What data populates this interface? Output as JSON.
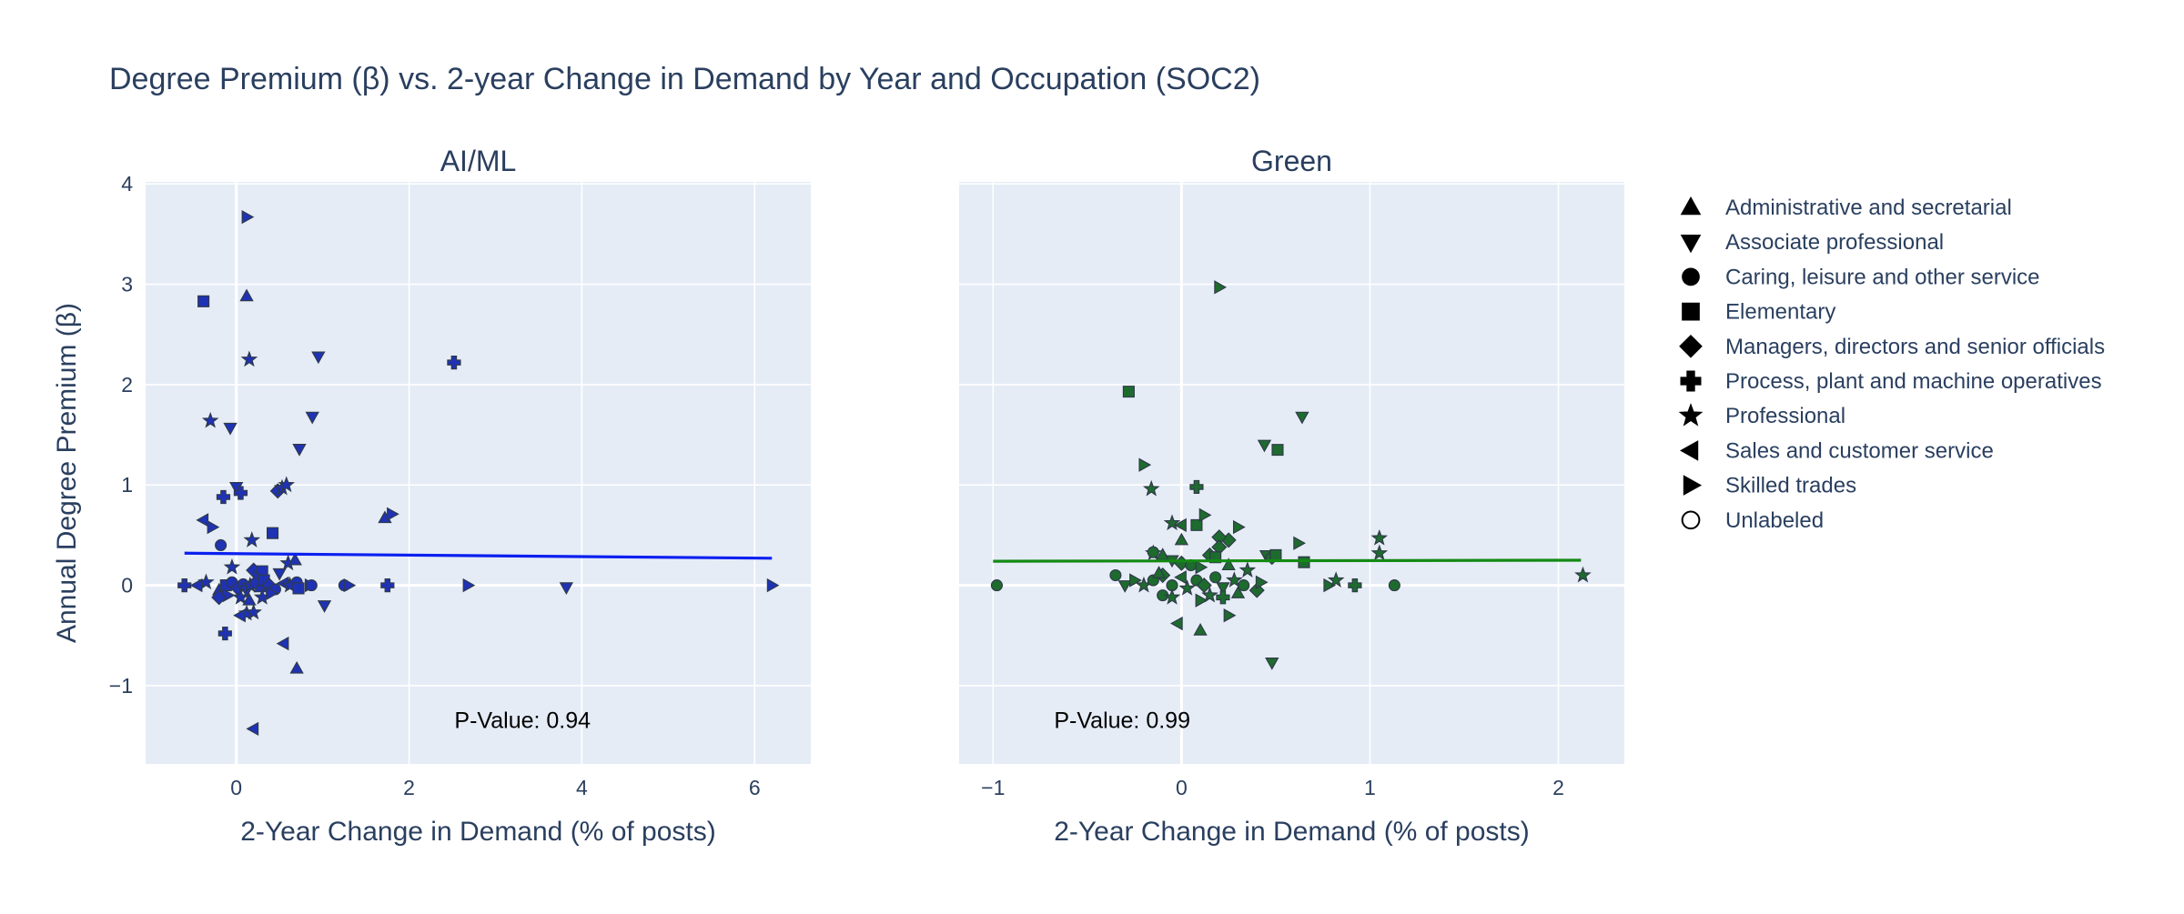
{
  "title": "Degree Premium (β) vs. 2-year Change in Demand by Year and Occupation (SOC2)",
  "colors": {
    "background": "#ffffff",
    "plot_bg": "#e5ecf6",
    "grid": "#ffffff",
    "text": "#2a3f5f",
    "ai_marker": "#1f32b4",
    "ai_line": "#0b1ff0",
    "green_marker": "#1e6b2e",
    "green_line": "#138a13",
    "marker_edge": "#2f3a4a"
  },
  "legend": {
    "placement": "right",
    "items": [
      {
        "label": "Administrative and secretarial",
        "symbol": "triangle-up"
      },
      {
        "label": "Associate professional",
        "symbol": "triangle-down"
      },
      {
        "label": "Caring, leisure and other service",
        "symbol": "circle"
      },
      {
        "label": "Elementary",
        "symbol": "square"
      },
      {
        "label": "Managers, directors and senior officials",
        "symbol": "diamond"
      },
      {
        "label": "Process, plant and machine operatives",
        "symbol": "cross"
      },
      {
        "label": "Professional",
        "symbol": "star"
      },
      {
        "label": "Sales and customer service",
        "symbol": "triangle-left"
      },
      {
        "label": "Skilled trades",
        "symbol": "triangle-right"
      },
      {
        "label": "Unlabeled",
        "symbol": "circle-open"
      }
    ]
  },
  "chart_data": [
    {
      "type": "scatter",
      "subtitle": "AI/ML",
      "xlabel": "2-Year Change in Demand (% of posts)",
      "ylabel": "Annual Degree Premium (β)",
      "xlim": [
        -1.05,
        6.65
      ],
      "ylim": [
        -1.78,
        4.02
      ],
      "xticks": [
        0,
        2,
        4,
        6
      ],
      "yticks": [
        -1,
        0,
        1,
        2,
        3,
        4
      ],
      "ytick_labels": [
        "−1",
        "0",
        "1",
        "2",
        "3",
        "4"
      ],
      "grid": true,
      "annotation": "P-Value: 0.94",
      "annotation_pos": [
        4.0,
        -1.34
      ],
      "fit_line": {
        "x": [
          -0.6,
          6.2
        ],
        "y": [
          0.32,
          0.27
        ]
      },
      "points": [
        {
          "x": 0.12,
          "y": 3.67,
          "symbol": "triangle-right"
        },
        {
          "x": 0.12,
          "y": 2.88,
          "symbol": "triangle-up"
        },
        {
          "x": -0.38,
          "y": 2.83,
          "symbol": "square"
        },
        {
          "x": 0.15,
          "y": 2.25,
          "symbol": "star"
        },
        {
          "x": 0.95,
          "y": 2.28,
          "symbol": "triangle-down"
        },
        {
          "x": 2.52,
          "y": 2.22,
          "symbol": "cross"
        },
        {
          "x": 0.88,
          "y": 1.68,
          "symbol": "triangle-down"
        },
        {
          "x": -0.3,
          "y": 1.64,
          "symbol": "star"
        },
        {
          "x": -0.07,
          "y": 1.57,
          "symbol": "triangle-down"
        },
        {
          "x": 0.73,
          "y": 1.36,
          "symbol": "triangle-down"
        },
        {
          "x": 0.0,
          "y": 0.98,
          "symbol": "triangle-down"
        },
        {
          "x": 0.05,
          "y": 0.92,
          "symbol": "cross"
        },
        {
          "x": -0.15,
          "y": 0.88,
          "symbol": "cross"
        },
        {
          "x": 0.48,
          "y": 0.94,
          "symbol": "diamond"
        },
        {
          "x": 0.53,
          "y": 0.97,
          "symbol": "star"
        },
        {
          "x": 0.58,
          "y": 1.0,
          "symbol": "star"
        },
        {
          "x": 1.72,
          "y": 0.67,
          "symbol": "triangle-up"
        },
        {
          "x": 1.8,
          "y": 0.71,
          "symbol": "triangle-right"
        },
        {
          "x": -0.38,
          "y": 0.65,
          "symbol": "triangle-left"
        },
        {
          "x": -0.28,
          "y": 0.58,
          "symbol": "triangle-right"
        },
        {
          "x": 0.42,
          "y": 0.52,
          "symbol": "square"
        },
        {
          "x": 0.18,
          "y": 0.45,
          "symbol": "star"
        },
        {
          "x": -0.18,
          "y": 0.4,
          "symbol": "circle"
        },
        {
          "x": 0.6,
          "y": 0.22,
          "symbol": "star"
        },
        {
          "x": 0.68,
          "y": 0.25,
          "symbol": "triangle-up"
        },
        {
          "x": -0.05,
          "y": 0.18,
          "symbol": "star"
        },
        {
          "x": 0.2,
          "y": 0.15,
          "symbol": "diamond"
        },
        {
          "x": 0.3,
          "y": 0.14,
          "symbol": "square"
        },
        {
          "x": 0.5,
          "y": 0.12,
          "symbol": "triangle-down"
        },
        {
          "x": 0.25,
          "y": 0.08,
          "symbol": "triangle-right"
        },
        {
          "x": -0.6,
          "y": 0.0,
          "symbol": "cross"
        },
        {
          "x": -0.45,
          "y": 0.0,
          "symbol": "triangle-left"
        },
        {
          "x": -0.35,
          "y": 0.03,
          "symbol": "star"
        },
        {
          "x": -0.2,
          "y": -0.05,
          "symbol": "triangle-up"
        },
        {
          "x": -0.12,
          "y": 0.0,
          "symbol": "square"
        },
        {
          "x": -0.05,
          "y": 0.03,
          "symbol": "circle"
        },
        {
          "x": 0.02,
          "y": -0.03,
          "symbol": "diamond"
        },
        {
          "x": 0.08,
          "y": 0.01,
          "symbol": "circle"
        },
        {
          "x": 0.12,
          "y": -0.05,
          "symbol": "triangle-down"
        },
        {
          "x": 0.16,
          "y": 0.0,
          "symbol": "star"
        },
        {
          "x": 0.22,
          "y": 0.02,
          "symbol": "circle"
        },
        {
          "x": 0.28,
          "y": -0.02,
          "symbol": "triangle-up"
        },
        {
          "x": 0.32,
          "y": 0.05,
          "symbol": "square"
        },
        {
          "x": 0.38,
          "y": 0.0,
          "symbol": "diamond"
        },
        {
          "x": 0.45,
          "y": -0.04,
          "symbol": "circle"
        },
        {
          "x": 0.55,
          "y": 0.02,
          "symbol": "triangle-left"
        },
        {
          "x": 0.62,
          "y": 0.0,
          "symbol": "star"
        },
        {
          "x": 0.7,
          "y": 0.03,
          "symbol": "circle"
        },
        {
          "x": 0.72,
          "y": -0.03,
          "symbol": "square"
        },
        {
          "x": 0.85,
          "y": 0.0,
          "symbol": "triangle-right"
        },
        {
          "x": 0.87,
          "y": 0.0,
          "symbol": "circle"
        },
        {
          "x": -0.1,
          "y": -0.1,
          "symbol": "triangle-right"
        },
        {
          "x": 0.05,
          "y": -0.12,
          "symbol": "star"
        },
        {
          "x": 0.15,
          "y": -0.15,
          "symbol": "triangle-up"
        },
        {
          "x": 0.3,
          "y": -0.12,
          "symbol": "star"
        },
        {
          "x": 0.4,
          "y": -0.08,
          "symbol": "triangle-right"
        },
        {
          "x": -0.2,
          "y": -0.12,
          "symbol": "diamond"
        },
        {
          "x": 0.12,
          "y": -0.28,
          "symbol": "star"
        },
        {
          "x": 0.05,
          "y": -0.3,
          "symbol": "triangle-left"
        },
        {
          "x": 0.2,
          "y": -0.27,
          "symbol": "star"
        },
        {
          "x": -0.13,
          "y": -0.48,
          "symbol": "cross"
        },
        {
          "x": 0.55,
          "y": -0.58,
          "symbol": "triangle-left"
        },
        {
          "x": 0.7,
          "y": -0.83,
          "symbol": "triangle-up"
        },
        {
          "x": 1.02,
          "y": -0.2,
          "symbol": "triangle-down"
        },
        {
          "x": 1.25,
          "y": 0.0,
          "symbol": "circle"
        },
        {
          "x": 1.3,
          "y": 0.0,
          "symbol": "triangle-right"
        },
        {
          "x": 1.75,
          "y": 0.0,
          "symbol": "cross"
        },
        {
          "x": 2.68,
          "y": 0.0,
          "symbol": "triangle-right"
        },
        {
          "x": 3.82,
          "y": -0.02,
          "symbol": "triangle-down"
        },
        {
          "x": 6.2,
          "y": 0.0,
          "symbol": "triangle-right"
        },
        {
          "x": 0.2,
          "y": -1.43,
          "symbol": "triangle-left"
        }
      ]
    },
    {
      "type": "scatter",
      "subtitle": "Green",
      "xlabel": "2-Year Change in Demand (% of posts)",
      "ylabel": "",
      "xlim": [
        -1.18,
        2.35
      ],
      "ylim": [
        -1.78,
        4.02
      ],
      "xticks": [
        -1,
        0,
        1,
        2
      ],
      "xtick_labels": [
        "−1",
        "0",
        "1",
        "2"
      ],
      "yticks": [
        -1,
        0,
        1,
        2,
        3,
        4
      ],
      "grid": true,
      "annotation": "P-Value: 0.99",
      "annotation_pos": [
        0.0,
        -1.34
      ],
      "fit_line": {
        "x": [
          -1.0,
          2.12
        ],
        "y": [
          0.24,
          0.25
        ]
      },
      "points": [
        {
          "x": 0.2,
          "y": 2.97,
          "symbol": "triangle-right"
        },
        {
          "x": -0.28,
          "y": 1.93,
          "symbol": "square"
        },
        {
          "x": 0.64,
          "y": 1.68,
          "symbol": "triangle-down"
        },
        {
          "x": 0.44,
          "y": 1.4,
          "symbol": "triangle-down"
        },
        {
          "x": 0.51,
          "y": 1.35,
          "symbol": "square"
        },
        {
          "x": -0.2,
          "y": 1.2,
          "symbol": "triangle-right"
        },
        {
          "x": -0.16,
          "y": 0.96,
          "symbol": "star"
        },
        {
          "x": 0.08,
          "y": 0.98,
          "symbol": "cross"
        },
        {
          "x": -0.05,
          "y": 0.62,
          "symbol": "star"
        },
        {
          "x": 0.0,
          "y": 0.6,
          "symbol": "triangle-left"
        },
        {
          "x": 0.08,
          "y": 0.6,
          "symbol": "square"
        },
        {
          "x": 0.12,
          "y": 0.7,
          "symbol": "triangle-right"
        },
        {
          "x": 0.25,
          "y": 0.45,
          "symbol": "diamond"
        },
        {
          "x": 0.3,
          "y": 0.58,
          "symbol": "triangle-right"
        },
        {
          "x": 0.0,
          "y": 0.45,
          "symbol": "triangle-up"
        },
        {
          "x": 0.2,
          "y": 0.48,
          "symbol": "diamond"
        },
        {
          "x": 0.2,
          "y": 0.38,
          "symbol": "diamond"
        },
        {
          "x": 0.62,
          "y": 0.42,
          "symbol": "triangle-right"
        },
        {
          "x": 1.05,
          "y": 0.47,
          "symbol": "star"
        },
        {
          "x": 1.05,
          "y": 0.32,
          "symbol": "star"
        },
        {
          "x": -0.15,
          "y": 0.32,
          "symbol": "star"
        },
        {
          "x": -0.1,
          "y": 0.3,
          "symbol": "triangle-up"
        },
        {
          "x": -0.15,
          "y": 0.33,
          "symbol": "circle"
        },
        {
          "x": 0.15,
          "y": 0.3,
          "symbol": "diamond"
        },
        {
          "x": 0.18,
          "y": 0.28,
          "symbol": "square"
        },
        {
          "x": 0.45,
          "y": 0.3,
          "symbol": "triangle-down"
        },
        {
          "x": 0.48,
          "y": 0.28,
          "symbol": "diamond"
        },
        {
          "x": 0.5,
          "y": 0.3,
          "symbol": "square"
        },
        {
          "x": 0.65,
          "y": 0.23,
          "symbol": "square"
        },
        {
          "x": -0.05,
          "y": 0.25,
          "symbol": "triangle-down"
        },
        {
          "x": 0.0,
          "y": 0.22,
          "symbol": "diamond"
        },
        {
          "x": 0.05,
          "y": 0.2,
          "symbol": "circle"
        },
        {
          "x": 0.1,
          "y": 0.18,
          "symbol": "triangle-right"
        },
        {
          "x": 0.25,
          "y": 0.2,
          "symbol": "triangle-up"
        },
        {
          "x": 0.35,
          "y": 0.15,
          "symbol": "star"
        },
        {
          "x": -0.35,
          "y": 0.1,
          "symbol": "circle"
        },
        {
          "x": -0.3,
          "y": 0.0,
          "symbol": "triangle-down"
        },
        {
          "x": -0.25,
          "y": 0.05,
          "symbol": "triangle-right"
        },
        {
          "x": -0.2,
          "y": 0.0,
          "symbol": "star"
        },
        {
          "x": -0.15,
          "y": 0.05,
          "symbol": "circle"
        },
        {
          "x": -0.1,
          "y": 0.1,
          "symbol": "diamond"
        },
        {
          "x": -0.05,
          "y": 0.0,
          "symbol": "circle"
        },
        {
          "x": 0.0,
          "y": 0.08,
          "symbol": "triangle-left"
        },
        {
          "x": 0.03,
          "y": -0.03,
          "symbol": "star"
        },
        {
          "x": 0.08,
          "y": 0.05,
          "symbol": "circle"
        },
        {
          "x": 0.12,
          "y": 0.0,
          "symbol": "diamond"
        },
        {
          "x": 0.18,
          "y": 0.08,
          "symbol": "circle"
        },
        {
          "x": 0.22,
          "y": -0.02,
          "symbol": "triangle-down"
        },
        {
          "x": 0.28,
          "y": 0.05,
          "symbol": "star"
        },
        {
          "x": 0.33,
          "y": 0.0,
          "symbol": "circle"
        },
        {
          "x": 0.4,
          "y": -0.05,
          "symbol": "diamond"
        },
        {
          "x": 0.42,
          "y": 0.03,
          "symbol": "triangle-right"
        },
        {
          "x": -0.12,
          "y": 0.12,
          "symbol": "triangle-up"
        },
        {
          "x": 0.15,
          "y": -0.1,
          "symbol": "star"
        },
        {
          "x": 0.3,
          "y": -0.08,
          "symbol": "triangle-up"
        },
        {
          "x": -0.1,
          "y": -0.1,
          "symbol": "circle"
        },
        {
          "x": -0.05,
          "y": -0.12,
          "symbol": "star"
        },
        {
          "x": 0.1,
          "y": -0.15,
          "symbol": "triangle-right"
        },
        {
          "x": 0.22,
          "y": -0.12,
          "symbol": "cross"
        },
        {
          "x": 0.25,
          "y": -0.3,
          "symbol": "triangle-right"
        },
        {
          "x": -0.02,
          "y": -0.38,
          "symbol": "triangle-left"
        },
        {
          "x": 0.1,
          "y": -0.45,
          "symbol": "triangle-up"
        },
        {
          "x": 0.48,
          "y": -0.77,
          "symbol": "triangle-down"
        },
        {
          "x": -0.98,
          "y": 0.0,
          "symbol": "circle"
        },
        {
          "x": 0.78,
          "y": 0.0,
          "symbol": "triangle-right"
        },
        {
          "x": 0.82,
          "y": 0.05,
          "symbol": "star"
        },
        {
          "x": 0.92,
          "y": 0.0,
          "symbol": "cross"
        },
        {
          "x": 1.13,
          "y": 0.0,
          "symbol": "circle"
        },
        {
          "x": 2.13,
          "y": 0.1,
          "symbol": "star"
        }
      ]
    }
  ]
}
